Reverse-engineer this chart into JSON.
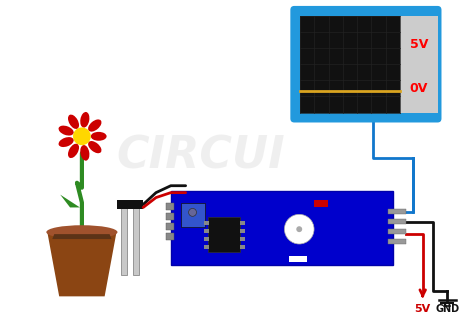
{
  "bg_color": "#ffffff",
  "pot_color": "#8B4513",
  "pot_rim_color": "#A0522D",
  "soil_color": "#5C3317",
  "stem_color": "#2E8B22",
  "flower_red": "#CC0000",
  "flower_center": "#FFD700",
  "leaf_color": "#2E8B22",
  "sensor_probe_color": "#C8C8C8",
  "sensor_connector_color": "#111111",
  "module_board_color": "#0000CC",
  "module_chip_color": "#111111",
  "module_led_color": "#CC0000",
  "wire_red": "#CC0000",
  "wire_black": "#111111",
  "wire_blue": "#1177CC",
  "display_border_color": "#2299DD",
  "display_bg_dark": "#111111",
  "display_bg_light": "#CCCCCC",
  "display_grid_color": "#222222",
  "display_line_color": "#DAA520",
  "display_5v_text": "5V",
  "display_0v_text": "0V",
  "label_5v": "5V",
  "label_gnd": "GND",
  "watermark": "CIRCUI",
  "watermark_color": "#cccccc"
}
